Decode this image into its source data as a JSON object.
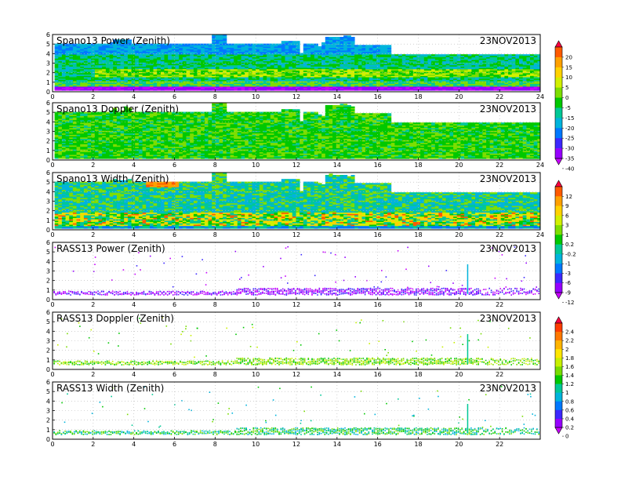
{
  "chart_data": [
    {
      "type": "heatmap",
      "title": "Spano13 Power (Zenith)",
      "date": "23NOV2013",
      "xlim": [
        0,
        24
      ],
      "ylim": [
        0,
        6
      ],
      "xticks": [
        "0",
        "2",
        "4",
        "6",
        "8",
        "10",
        "12",
        "14",
        "16",
        "18",
        "20",
        "22",
        "24"
      ],
      "yticks": [
        "0",
        "1",
        "2",
        "3",
        "4",
        "5",
        "6"
      ],
      "colorbar_group": "a"
    },
    {
      "type": "heatmap",
      "title": "Spano13 Doppler (Zenith)",
      "date": "23NOV2013",
      "xlim": [
        0,
        24
      ],
      "ylim": [
        0,
        6
      ],
      "xticks": [
        "0",
        "2",
        "4",
        "6",
        "8",
        "10",
        "12",
        "14",
        "16",
        "18",
        "20",
        "22",
        "24"
      ],
      "yticks": [
        "0",
        "1",
        "2",
        "3",
        "4",
        "5",
        "6"
      ],
      "colorbar_group": "a"
    },
    {
      "type": "heatmap",
      "title": "Spano13 Width (Zenith)",
      "date": "23NOV2013",
      "xlim": [
        0,
        24
      ],
      "ylim": [
        0,
        6
      ],
      "xticks": [
        "0",
        "2",
        "4",
        "6",
        "8",
        "10",
        "12",
        "14",
        "16",
        "18",
        "20",
        "22",
        "24"
      ],
      "yticks": [
        "0",
        "1",
        "2",
        "3",
        "4",
        "5",
        "6"
      ],
      "colorbar_group": "b"
    },
    {
      "type": "scatter",
      "title": "RASS13 Power (Zenith)",
      "date": "23NOV2013",
      "xlim": [
        0,
        24
      ],
      "ylim": [
        0,
        6
      ],
      "xticks": [
        "0",
        "2",
        "4",
        "6",
        "8",
        "10",
        "12",
        "14",
        "16",
        "18",
        "20",
        "22"
      ],
      "yticks": [
        "0",
        "1",
        "2",
        "3",
        "4",
        "5",
        "6"
      ],
      "colorbar_group": "b"
    },
    {
      "type": "scatter",
      "title": "RASS13 Doppler (Zenith)",
      "date": "23NOV2013",
      "xlim": [
        0,
        24
      ],
      "ylim": [
        0,
        6
      ],
      "xticks": [
        "0",
        "2",
        "4",
        "6",
        "8",
        "10",
        "12",
        "14",
        "16",
        "18",
        "20",
        "22"
      ],
      "yticks": [
        "0",
        "1",
        "2",
        "3",
        "4",
        "5",
        "6"
      ],
      "colorbar_group": "c"
    },
    {
      "type": "scatter",
      "title": "RASS13 Width (Zenith)",
      "date": "23NOV2013",
      "xlim": [
        0,
        24
      ],
      "ylim": [
        0,
        6
      ],
      "xticks": [
        "0",
        "2",
        "4",
        "6",
        "8",
        "10",
        "12",
        "14",
        "16",
        "18",
        "20",
        "22"
      ],
      "yticks": [
        "0",
        "1",
        "2",
        "3",
        "4",
        "5",
        "6"
      ],
      "colorbar_group": "c"
    }
  ],
  "colorbars": [
    {
      "id": "a",
      "labels": [
        "20",
        "15",
        "10",
        "5",
        "0",
        "-5",
        "-15",
        "-20",
        "-25",
        "-30",
        "-35",
        "-40"
      ],
      "colors": [
        "#ff0040",
        "#ff5a00",
        "#ffa000",
        "#ffd200",
        "#d2f000",
        "#7dde00",
        "#00c800",
        "#00c896",
        "#00b4dc",
        "#0078ff",
        "#3c28ff",
        "#9600ff",
        "#c800ff"
      ]
    },
    {
      "id": "b",
      "labels": [
        "12",
        "9",
        "6",
        "3",
        "1",
        "0.2",
        "-0.2",
        "-1",
        "-3",
        "-6",
        "-9",
        "-12"
      ],
      "colors": [
        "#ff0040",
        "#ff5a00",
        "#ffa000",
        "#ffd200",
        "#d2f000",
        "#7dde00",
        "#00c800",
        "#00c896",
        "#00b4dc",
        "#0078ff",
        "#3c28ff",
        "#9600ff",
        "#c800ff"
      ]
    },
    {
      "id": "c",
      "labels": [
        "2.4",
        "2.2",
        "2",
        "1.8",
        "1.6",
        "1.4",
        "1.2",
        "1",
        "0.8",
        "0.6",
        "0.4",
        "0.2",
        "0"
      ],
      "colors": [
        "#ff0040",
        "#ff3c00",
        "#ff7800",
        "#ffb400",
        "#ffe600",
        "#c8f000",
        "#78dc00",
        "#00c800",
        "#00c896",
        "#00b4dc",
        "#0078ff",
        "#3c28ff",
        "#9600ff",
        "#c800ff"
      ]
    }
  ]
}
